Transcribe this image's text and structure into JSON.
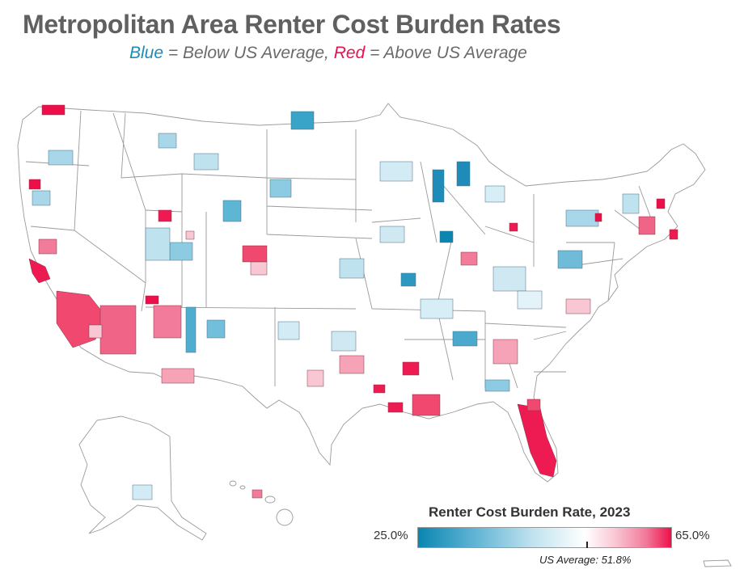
{
  "title": "Metropolitan Area Renter Cost Burden Rates",
  "subtitle": {
    "blue_word": "Blue",
    "blue_text": " = Below US Average, ",
    "red_word": "Red",
    "red_text": " = Above US Average"
  },
  "legend": {
    "title": "Renter Cost Burden Rate, 2023",
    "min_label": "25.0%",
    "max_label": "65.0%",
    "average_label": "US Average: 51.8%",
    "min_value": 25.0,
    "max_value": 65.0,
    "average_value": 51.8
  },
  "colors": {
    "below_average": "#1e8bb8",
    "above_average": "#e8124c",
    "map_outline": "#9a9a9a"
  }
}
